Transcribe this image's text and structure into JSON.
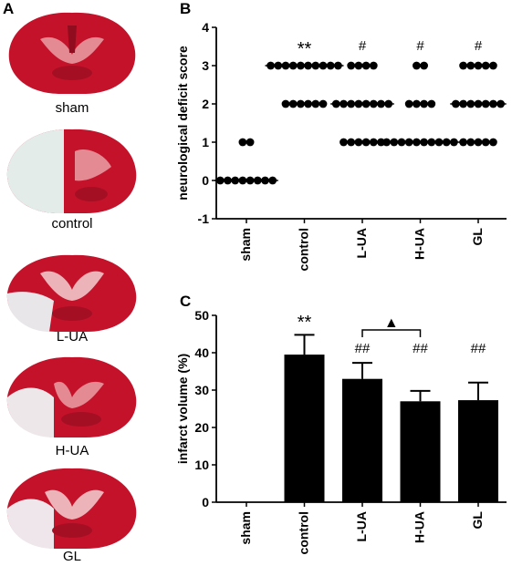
{
  "panels": {
    "a_letter": "A",
    "b_letter": "B",
    "c_letter": "C"
  },
  "brain_slices": [
    {
      "label": "sham"
    },
    {
      "label": "control"
    },
    {
      "label": "L-UA"
    },
    {
      "label": "H-UA"
    },
    {
      "label": "GL"
    }
  ],
  "colors": {
    "tissue_red": "#c4122a",
    "tissue_dark": "#8f0d1e",
    "infarct_white": "#e9ecef",
    "bar_fill": "#000000"
  },
  "chart_data": [
    {
      "type": "scatter",
      "ylabel": "neurological deficit score",
      "xlabel": "",
      "categories": [
        "sham",
        "control",
        "L-UA",
        "H-UA",
        "GL"
      ],
      "ylim": [
        -1,
        4
      ],
      "yticks": [
        -1,
        0,
        1,
        2,
        3,
        4
      ],
      "points": [
        {
          "category": "sham",
          "values": [
            0,
            0,
            0,
            0,
            0,
            0,
            0,
            0,
            1,
            1
          ],
          "median": 0
        },
        {
          "category": "control",
          "values": [
            3,
            3,
            3,
            3,
            3,
            3,
            3,
            3,
            3,
            3,
            2,
            2,
            2,
            2,
            2,
            2
          ],
          "median": 3
        },
        {
          "category": "L-UA",
          "values": [
            3,
            3,
            3,
            3,
            2,
            2,
            2,
            2,
            2,
            2,
            2,
            2,
            1,
            1,
            1,
            1,
            1,
            1
          ],
          "median": 2
        },
        {
          "category": "H-UA",
          "values": [
            3,
            3,
            2,
            2,
            2,
            2,
            1,
            1,
            1,
            1,
            1,
            1,
            1,
            1,
            1,
            1
          ],
          "median": 1
        },
        {
          "category": "GL",
          "values": [
            3,
            3,
            3,
            3,
            3,
            2,
            2,
            2,
            2,
            2,
            2,
            2,
            1,
            1,
            1,
            1,
            1
          ],
          "median": 2
        }
      ],
      "annotations": [
        {
          "category": "control",
          "text": "**"
        },
        {
          "category": "L-UA",
          "text": "#"
        },
        {
          "category": "H-UA",
          "text": "#"
        },
        {
          "category": "GL",
          "text": "#"
        }
      ],
      "grid": false
    },
    {
      "type": "bar",
      "ylabel": "infarct volume (%)",
      "xlabel": "",
      "categories": [
        "sham",
        "control",
        "L-UA",
        "H-UA",
        "GL"
      ],
      "values": [
        0,
        39.5,
        33,
        27,
        27.3
      ],
      "errors": [
        0,
        5.3,
        4.3,
        2.8,
        4.7
      ],
      "ylim": [
        0,
        50
      ],
      "yticks": [
        0,
        10,
        20,
        30,
        40,
        50
      ],
      "annotations": [
        {
          "category": "control",
          "text": "**"
        },
        {
          "category": "L-UA",
          "text": "##"
        },
        {
          "category": "H-UA",
          "text": "##"
        },
        {
          "category": "GL",
          "text": "##"
        }
      ],
      "bracket": {
        "from": "L-UA",
        "to": "H-UA",
        "symbol": "▲"
      },
      "grid": false
    }
  ]
}
